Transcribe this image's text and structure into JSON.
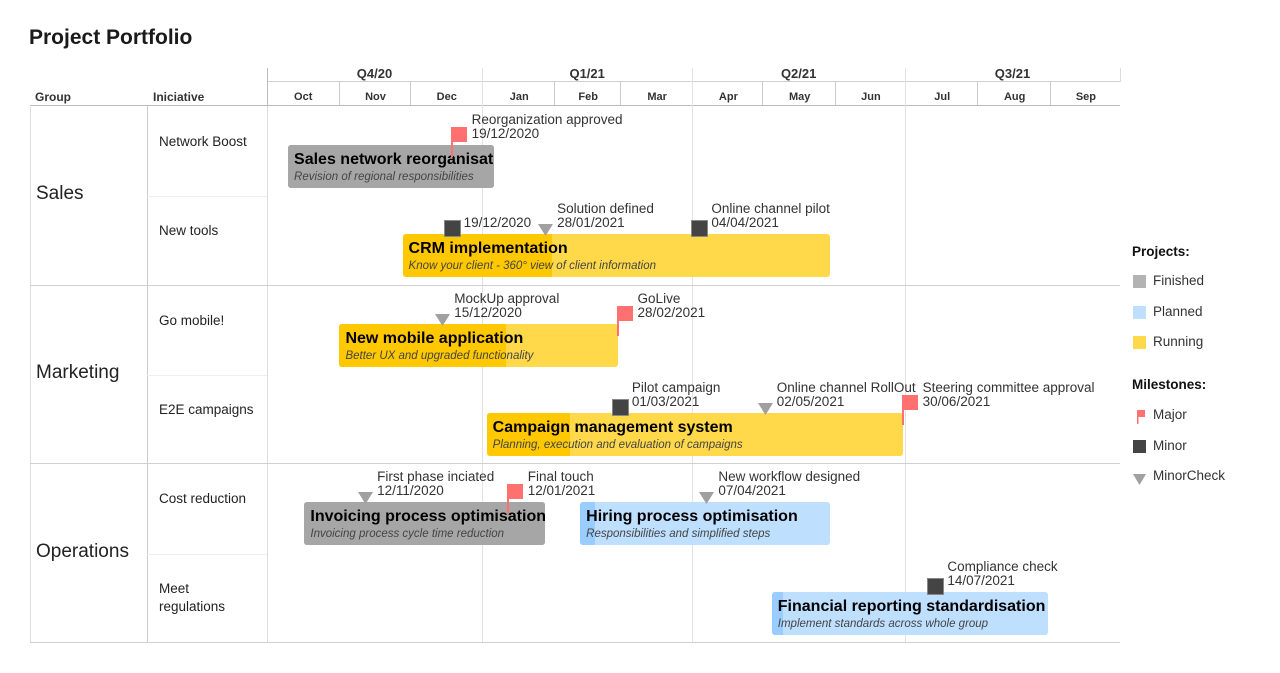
{
  "title": "Project Portfolio",
  "headers": {
    "group": "Group",
    "initiative": "Iniciative"
  },
  "chart_data": {
    "type": "gantt",
    "quarters": [
      "Q4/20",
      "Q1/21",
      "Q2/21",
      "Q3/21"
    ],
    "months": [
      "Oct",
      "Nov",
      "Dec",
      "Jan",
      "Feb",
      "Mar",
      "Apr",
      "May",
      "Jun",
      "Jul",
      "Aug",
      "Sep"
    ],
    "range": [
      "2020-10-01",
      "2021-09-30"
    ],
    "groups": [
      {
        "name": "Sales",
        "initiatives": [
          {
            "name": "Network Boost",
            "projects": [
              {
                "title": "Sales network reorganisation",
                "subtitle": "Revision of regional responsibilities",
                "status": "Finished",
                "start": "2020-10-10",
                "end": "2021-01-06",
                "progress": 1,
                "milestones": [
                  {
                    "type": "Major",
                    "label": "Reorganization approved",
                    "date": "19/12/2020"
                  }
                ]
              }
            ]
          },
          {
            "name": "New tools",
            "projects": [
              {
                "title": "CRM implementation",
                "subtitle": "Know your client - 360° view of client information",
                "status": "Running",
                "start": "2020-11-28",
                "end": "2021-05-30",
                "progress": 0.35,
                "milestones": [
                  {
                    "type": "Minor",
                    "label": "",
                    "date": "19/12/2020"
                  },
                  {
                    "type": "MinorCheck",
                    "label": "Solution defined",
                    "date": "28/01/2021"
                  },
                  {
                    "type": "Minor",
                    "label": "Online channel pilot",
                    "date": "04/04/2021"
                  }
                ]
              }
            ]
          }
        ]
      },
      {
        "name": "Marketing",
        "initiatives": [
          {
            "name": "Go mobile!",
            "projects": [
              {
                "title": "New mobile application",
                "subtitle": "Better UX and upgraded functionality",
                "status": "Running",
                "start": "2020-11-01",
                "end": "2021-02-28",
                "progress": 0.6,
                "milestones": [
                  {
                    "type": "MinorCheck",
                    "label": "MockUp approval",
                    "date": "15/12/2020"
                  },
                  {
                    "type": "Major",
                    "label": "GoLive",
                    "date": "28/02/2021"
                  }
                ]
              }
            ]
          },
          {
            "name": "E2E campaigns",
            "projects": [
              {
                "title": "Campaign management system",
                "subtitle": "Planning, execution and evaluation of campaigns",
                "status": "Running",
                "start": "2021-01-03",
                "end": "2021-06-30",
                "progress": 0.2,
                "milestones": [
                  {
                    "type": "Minor",
                    "label": "Pilot campaign",
                    "date": "01/03/2021"
                  },
                  {
                    "type": "MinorCheck",
                    "label": "Online channel RollOut",
                    "date": "02/05/2021"
                  },
                  {
                    "type": "Major",
                    "label": "Steering committee approval",
                    "date": "30/06/2021"
                  }
                ]
              }
            ]
          }
        ]
      },
      {
        "name": "Operations",
        "initiatives": [
          {
            "name": "Cost reduction",
            "projects": [
              {
                "title": "Invoicing process optimisation",
                "subtitle": "Invoicing process cycle time reduction",
                "status": "Finished",
                "start": "2020-10-17",
                "end": "2021-01-28",
                "progress": 1,
                "milestones": [
                  {
                    "type": "MinorCheck",
                    "label": "First phase inciated",
                    "date": "12/11/2020"
                  },
                  {
                    "type": "Major",
                    "label": "Final touch",
                    "date": "12/01/2021"
                  }
                ]
              },
              {
                "title": "Hiring process optimisation",
                "subtitle": "Responsibilities and simplified steps",
                "status": "Planned",
                "start": "2021-02-12",
                "end": "2021-05-30",
                "progress": 0.06,
                "milestones": [
                  {
                    "type": "MinorCheck",
                    "label": "New workflow designed",
                    "date": "07/04/2021"
                  }
                ]
              }
            ]
          },
          {
            "name": "Meet regulations",
            "projects": [
              {
                "title": "Financial reporting standardisation",
                "subtitle": "Implement standards across whole group",
                "status": "Planned",
                "start": "2021-05-05",
                "end": "2021-08-31",
                "progress": 0.04,
                "milestones": [
                  {
                    "type": "Minor",
                    "label": "Compliance check",
                    "date": "14/07/2021"
                  }
                ]
              }
            ]
          }
        ]
      }
    ],
    "legend": {
      "projects_title": "Projects:",
      "projects": [
        {
          "name": "Finished",
          "color": "#b3b3b3",
          "progress_color": "#a6a6a6"
        },
        {
          "name": "Planned",
          "color": "#bfdfff",
          "progress_color": "#99ccff"
        },
        {
          "name": "Running",
          "color": "#ffd94a",
          "progress_color": "#ffc800"
        }
      ],
      "milestones_title": "Milestones:",
      "milestones": [
        {
          "name": "Major",
          "color": "#ff7070"
        },
        {
          "name": "Minor",
          "color": "#444444"
        },
        {
          "name": "MinorCheck",
          "color": "#a0a0a0"
        }
      ]
    }
  }
}
